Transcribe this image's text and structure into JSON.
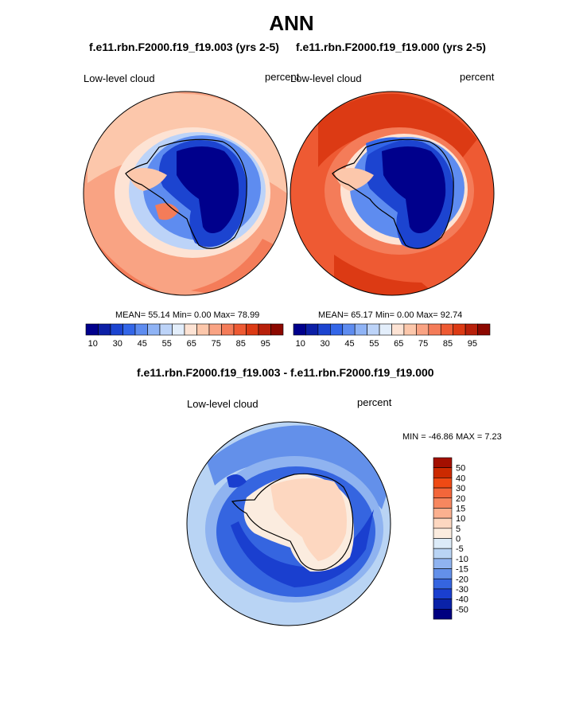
{
  "figure": {
    "title": "ANN"
  },
  "panels": [
    {
      "case_title": "f.e11.rbn.F2000.f19_f19.003 (yrs 2-5)",
      "variable": "Low-level cloud",
      "units": "percent",
      "stats": "MEAN=  55.14  Min=   0.00  Max=  78.99"
    },
    {
      "case_title": "f.e11.rbn.F2000.f19_f19.000 (yrs 2-5)",
      "variable": "Low-level cloud",
      "units": "percent",
      "stats": "MEAN=  65.17  Min=   0.00  Max=  92.74"
    }
  ],
  "diff_panel": {
    "title": "f.e11.rbn.F2000.f19_f19.003 - f.e11.rbn.F2000.f19_f19.000",
    "variable": "Low-level cloud",
    "units": "percent",
    "minmax": "MIN = -46.86 MAX =   7.23"
  },
  "colorbars": {
    "abs_ticks": [
      "10",
      "30",
      "45",
      "55",
      "65",
      "75",
      "85",
      "95"
    ],
    "abs_colors": [
      "#00008c",
      "#0c1fa6",
      "#1c44d0",
      "#3366e8",
      "#5e8cf0",
      "#8fb3f5",
      "#bcd3f8",
      "#e3eefb",
      "#fde3d4",
      "#fcc7ab",
      "#f9a383",
      "#f47c59",
      "#ee5a33",
      "#dc3a14",
      "#b8200a",
      "#8c0800"
    ],
    "diff_ticks": [
      "50",
      "40",
      "30",
      "20",
      "15",
      "10",
      "5",
      "0",
      "-5",
      "-10",
      "-15",
      "-20",
      "-30",
      "-40",
      "-50"
    ],
    "diff_colors": [
      "#a30f00",
      "#cc2a00",
      "#ef4a14",
      "#f3663a",
      "#f7875f",
      "#fbb08f",
      "#fdd7c0",
      "#fbecdf",
      "#dcebf8",
      "#b9d4f4",
      "#8fb3f0",
      "#6390ea",
      "#3565e0",
      "#1a3fcf",
      "#0a22a8",
      "#000080"
    ]
  },
  "chart_data": [
    {
      "type": "heatmap",
      "title": "f.e11.rbn.F2000.f19_f19.003 (yrs 2-5)",
      "variable": "Low-level cloud",
      "units": "percent",
      "projection": "polar stereographic (South Pole)",
      "mean": 55.14,
      "min": 0.0,
      "max": 78.99,
      "contour_levels": [
        10,
        20,
        30,
        40,
        45,
        50,
        55,
        60,
        65,
        70,
        75,
        80,
        85,
        90,
        95
      ]
    },
    {
      "type": "heatmap",
      "title": "f.e11.rbn.F2000.f19_f19.000 (yrs 2-5)",
      "variable": "Low-level cloud",
      "units": "percent",
      "projection": "polar stereographic (South Pole)",
      "mean": 65.17,
      "min": 0.0,
      "max": 92.74,
      "contour_levels": [
        10,
        20,
        30,
        40,
        45,
        50,
        55,
        60,
        65,
        70,
        75,
        80,
        85,
        90,
        95
      ]
    },
    {
      "type": "heatmap",
      "title": "f.e11.rbn.F2000.f19_f19.003 - f.e11.rbn.F2000.f19_f19.000",
      "variable": "Low-level cloud",
      "units": "percent",
      "projection": "polar stereographic (South Pole)",
      "min": -46.86,
      "max": 7.23,
      "contour_levels": [
        -50,
        -40,
        -30,
        -20,
        -15,
        -10,
        -5,
        0,
        5,
        10,
        15,
        20,
        30,
        40,
        50
      ]
    }
  ]
}
